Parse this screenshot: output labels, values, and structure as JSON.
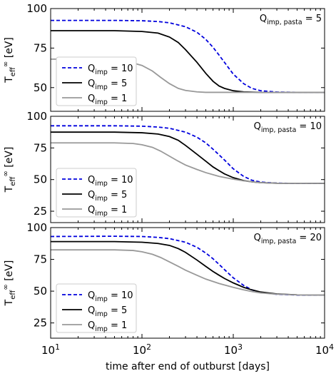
{
  "chart_data": [
    {
      "type": "line",
      "annotation": "Q_{imp, pasta} = 5",
      "ylabel": "T_eff^∞ [eV]",
      "ylim": [
        35,
        100
      ],
      "yticks": [
        50,
        75,
        100
      ],
      "xlim": [
        10,
        10000
      ],
      "xscale": "log",
      "legend_position": "lower left",
      "series": [
        {
          "name": "Q_imp = 10",
          "color": "#0000dd",
          "style": "dashed",
          "x": [
            10,
            50,
            100,
            150,
            200,
            300,
            400,
            500,
            600,
            700,
            800,
            1000,
            1300,
            1600,
            2000,
            3000,
            5000,
            10000
          ],
          "y": [
            92.5,
            92.5,
            92.3,
            91.8,
            91,
            88.5,
            85,
            80.5,
            75.5,
            70.5,
            66,
            58.5,
            52.5,
            49.5,
            48,
            47.2,
            47,
            47
          ]
        },
        {
          "name": "Q_imp = 5",
          "color": "#000000",
          "style": "solid",
          "x": [
            10,
            50,
            100,
            150,
            200,
            250,
            300,
            400,
            500,
            600,
            700,
            800,
            1000,
            1300,
            2000,
            5000,
            10000
          ],
          "y": [
            86,
            86,
            85.5,
            84.5,
            82,
            78.5,
            74,
            66,
            59,
            54,
            51,
            49.5,
            48,
            47.3,
            47,
            47,
            47
          ]
        },
        {
          "name": "Q_imp = 1",
          "color": "#999999",
          "style": "solid",
          "x": [
            10,
            30,
            50,
            70,
            100,
            130,
            160,
            200,
            250,
            300,
            400,
            500,
            700,
            1000,
            10000
          ],
          "y": [
            68,
            68,
            67.5,
            66.5,
            64,
            60.5,
            56.5,
            52.5,
            49.5,
            48.2,
            47.3,
            47,
            47,
            47,
            47
          ]
        }
      ]
    },
    {
      "type": "line",
      "annotation": "Q_{imp, pasta} = 10",
      "ylabel": "T_eff^∞ [eV]",
      "ylim": [
        16,
        100
      ],
      "yticks": [
        25,
        50,
        75,
        100
      ],
      "xlim": [
        10,
        10000
      ],
      "xscale": "log",
      "legend_position": "lower left",
      "series": [
        {
          "name": "Q_imp = 10",
          "color": "#0000dd",
          "style": "dashed",
          "x": [
            10,
            50,
            100,
            150,
            200,
            300,
            400,
            500,
            600,
            700,
            800,
            1000,
            1300,
            1600,
            2000,
            3000,
            5000,
            10000
          ],
          "y": [
            92.5,
            92.5,
            92.2,
            91.5,
            90.5,
            87.5,
            83.5,
            79,
            74,
            69.5,
            65.5,
            58.5,
            52.5,
            49.5,
            48,
            47.2,
            47,
            47
          ]
        },
        {
          "name": "Q_imp = 5",
          "color": "#000000",
          "style": "solid",
          "x": [
            10,
            50,
            100,
            150,
            200,
            250,
            300,
            400,
            500,
            600,
            700,
            800,
            1000,
            1300,
            1600,
            2000,
            3000,
            10000
          ],
          "y": [
            87.5,
            87.5,
            87,
            86,
            84,
            81,
            77,
            70,
            64.5,
            60,
            57,
            54.5,
            51.5,
            49.2,
            48.2,
            47.6,
            47.1,
            47
          ]
        },
        {
          "name": "Q_imp = 1",
          "color": "#999999",
          "style": "solid",
          "x": [
            10,
            50,
            80,
            100,
            130,
            160,
            200,
            250,
            300,
            400,
            500,
            700,
            1000,
            1300,
            1600,
            2000,
            3000,
            10000
          ],
          "y": [
            79,
            79,
            78.5,
            77.5,
            75.5,
            72.5,
            68.5,
            64.5,
            61.5,
            58,
            55.5,
            52.5,
            50.3,
            49,
            48.2,
            47.6,
            47.1,
            47
          ]
        }
      ]
    },
    {
      "type": "line",
      "annotation": "Q_{imp, pasta} = 20",
      "ylabel": "T_eff^∞ [eV]",
      "ylim": [
        13,
        100
      ],
      "yticks": [
        25,
        50,
        75,
        100
      ],
      "xlim": [
        10,
        10000
      ],
      "xscale": "log",
      "xlabel": "time after end of outburst [days]",
      "xtick_labels": [
        "10^1",
        "10^2",
        "10^3",
        "10^4"
      ],
      "legend_position": "lower left",
      "series": [
        {
          "name": "Q_imp = 10",
          "color": "#0000dd",
          "style": "dashed",
          "x": [
            10,
            50,
            100,
            150,
            200,
            300,
            400,
            500,
            600,
            700,
            800,
            1000,
            1300,
            1600,
            2000,
            3000,
            5000,
            10000
          ],
          "y": [
            93,
            93.2,
            93,
            92.3,
            91.3,
            88.5,
            84.5,
            80,
            75.5,
            71,
            67,
            60.5,
            54.5,
            51,
            49,
            47.5,
            47,
            47
          ]
        },
        {
          "name": "Q_imp = 5",
          "color": "#000000",
          "style": "solid",
          "x": [
            10,
            50,
            100,
            150,
            200,
            250,
            300,
            400,
            500,
            600,
            700,
            800,
            1000,
            1300,
            1600,
            2000,
            3000,
            5000,
            10000
          ],
          "y": [
            89,
            89,
            88.5,
            87.5,
            86,
            83.5,
            80.5,
            74.5,
            69.5,
            65.5,
            62.5,
            60,
            56.5,
            53,
            51,
            49.3,
            47.8,
            47.1,
            47
          ]
        },
        {
          "name": "Q_imp = 1",
          "color": "#999999",
          "style": "solid",
          "x": [
            10,
            50,
            80,
            100,
            130,
            160,
            200,
            250,
            300,
            400,
            500,
            700,
            1000,
            1300,
            1600,
            2000,
            3000,
            5000,
            10000
          ],
          "y": [
            82.5,
            82.5,
            82,
            81,
            79,
            76.5,
            73,
            69.5,
            66.5,
            62.5,
            59.5,
            56,
            53,
            51,
            49.7,
            48.6,
            47.6,
            47.1,
            47
          ]
        }
      ]
    }
  ]
}
